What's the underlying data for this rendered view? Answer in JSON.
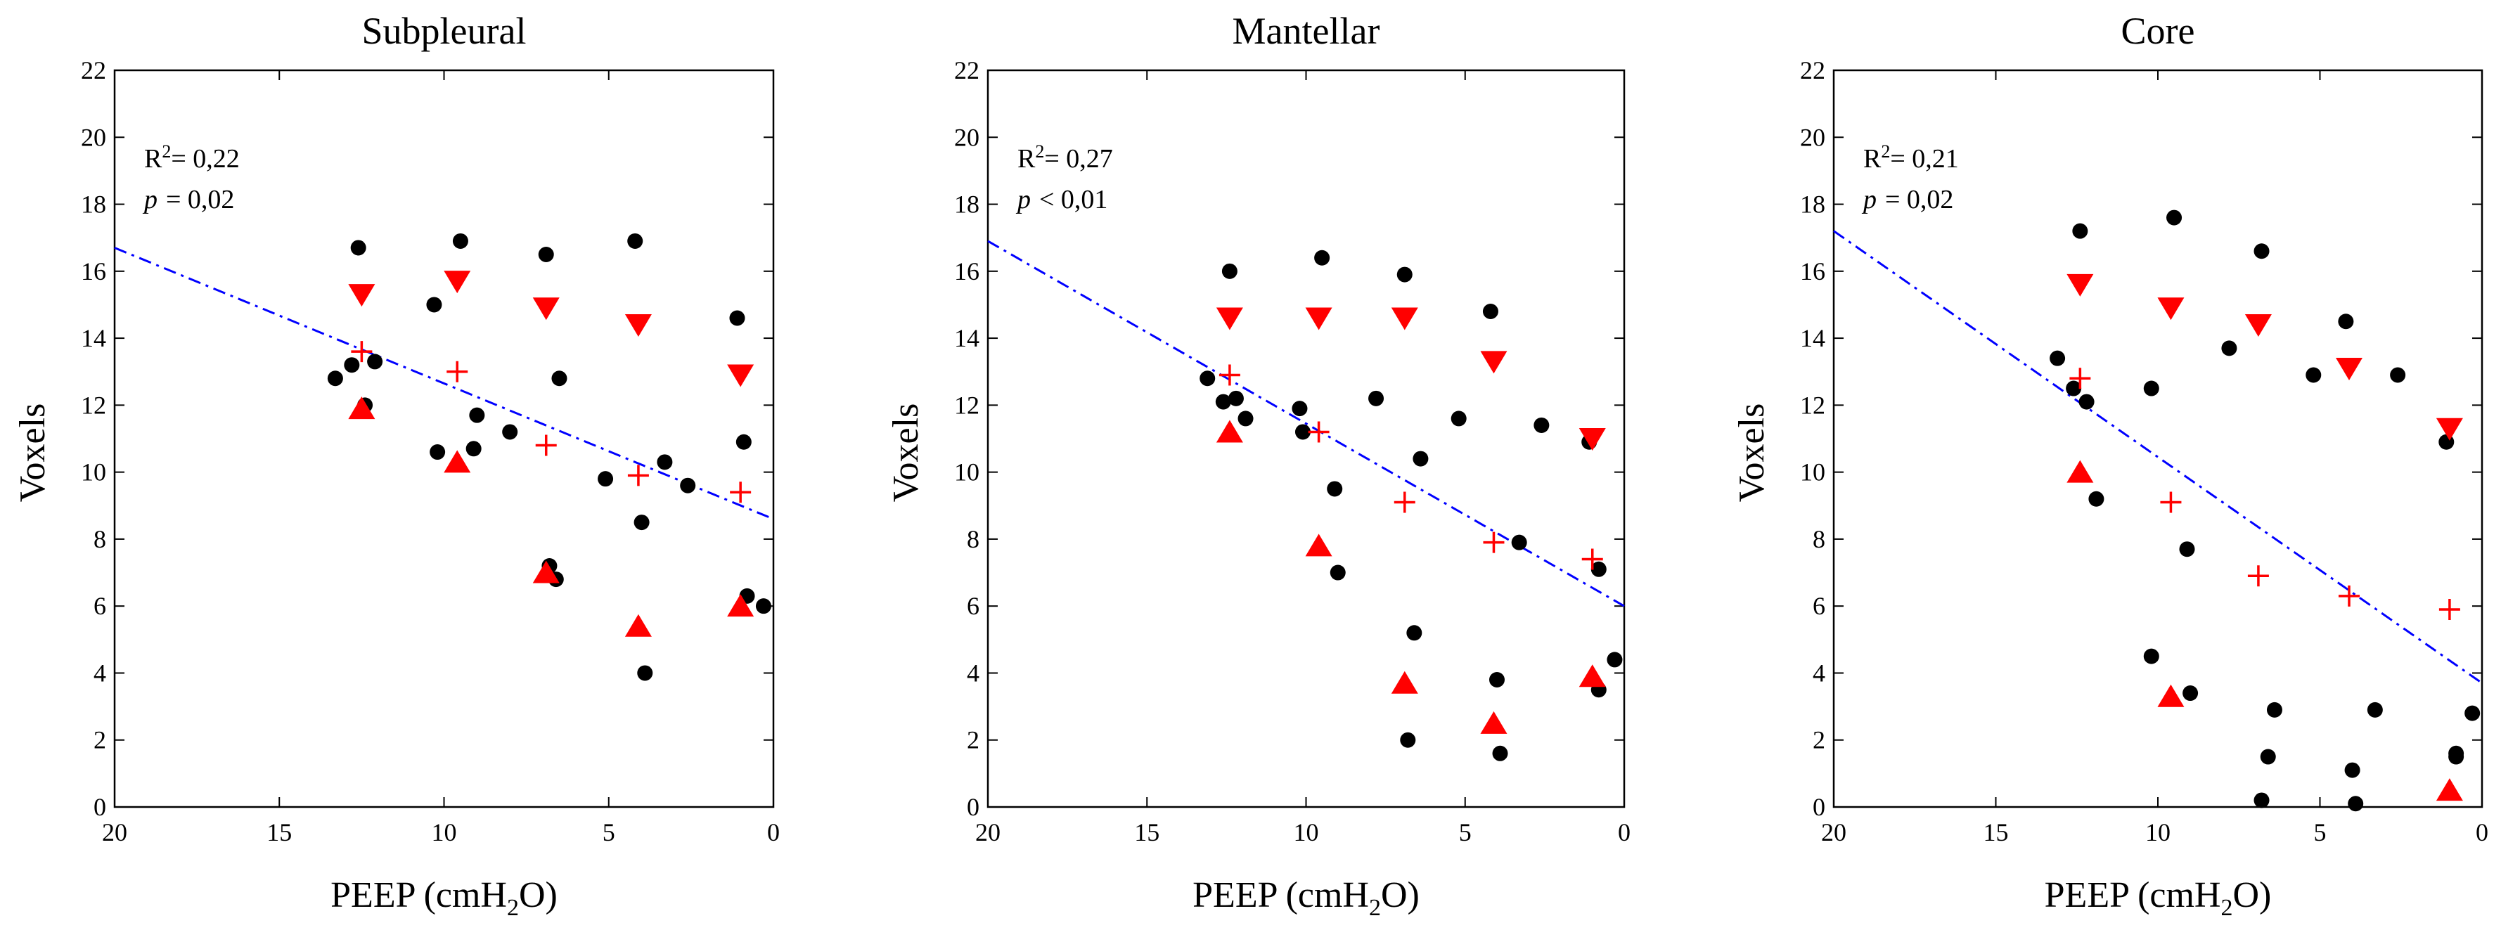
{
  "colors": {
    "dots": "#000000",
    "markers": "#ff0000",
    "regression": "#0000ff",
    "frame": "#000000"
  },
  "legend": {
    "up_triangle": "triangle-up-icon",
    "down_triangle": "triangle-down-icon",
    "mean": "plus-icon",
    "individual": "dot-icon"
  },
  "chart_data": [
    {
      "type": "scatter",
      "title": "Subpleural",
      "xlabel_text": "PEEP (cmH",
      "xlabel_sub": "2",
      "xlabel_end": "O)",
      "ylabel": "Voxels",
      "xlim": [
        20,
        0
      ],
      "ylim": [
        0,
        22
      ],
      "xticks": [
        20,
        15,
        10,
        5,
        0
      ],
      "yticks": [
        0,
        2,
        4,
        6,
        8,
        10,
        12,
        14,
        16,
        18,
        20,
        22
      ],
      "r2_label": "R",
      "r2_sup": "2",
      "r2_value": "= 0,22",
      "p_label": "p",
      "p_value": "= 0,02",
      "regression": {
        "x1": 20,
        "y1": 16.7,
        "x2": 0,
        "y2": 8.6
      },
      "points": [
        [
          13.3,
          12.8
        ],
        [
          12.8,
          13.2
        ],
        [
          12.6,
          16.7
        ],
        [
          12.4,
          12.0
        ],
        [
          12.1,
          13.3
        ],
        [
          10.3,
          15.0
        ],
        [
          10.2,
          10.6
        ],
        [
          9.5,
          16.9
        ],
        [
          9.1,
          10.7
        ],
        [
          9.0,
          11.7
        ],
        [
          8.0,
          11.2
        ],
        [
          6.9,
          16.5
        ],
        [
          6.8,
          7.2
        ],
        [
          6.6,
          6.8
        ],
        [
          6.5,
          12.8
        ],
        [
          5.1,
          9.8
        ],
        [
          4.2,
          16.9
        ],
        [
          4.0,
          8.5
        ],
        [
          3.9,
          4.0
        ],
        [
          3.3,
          10.3
        ],
        [
          2.6,
          9.6
        ],
        [
          1.1,
          14.6
        ],
        [
          0.9,
          10.9
        ],
        [
          0.8,
          6.3
        ],
        [
          0.3,
          6.0
        ]
      ],
      "down_triangles": [
        [
          12.5,
          15.3
        ],
        [
          9.6,
          15.7
        ],
        [
          6.9,
          14.9
        ],
        [
          4.1,
          14.4
        ],
        [
          1.0,
          12.9
        ]
      ],
      "up_triangles": [
        [
          12.5,
          11.9
        ],
        [
          9.6,
          10.3
        ],
        [
          6.9,
          7.0
        ],
        [
          4.1,
          5.4
        ],
        [
          1.0,
          6.0
        ]
      ],
      "means": [
        [
          12.5,
          13.6
        ],
        [
          9.6,
          13.0
        ],
        [
          6.9,
          10.8
        ],
        [
          4.1,
          9.9
        ],
        [
          1.0,
          9.4
        ]
      ]
    },
    {
      "type": "scatter",
      "title": "Mantellar",
      "xlabel_text": "PEEP (cmH",
      "xlabel_sub": "2",
      "xlabel_end": "O)",
      "ylabel": "Voxels",
      "xlim": [
        20,
        0
      ],
      "ylim": [
        0,
        22
      ],
      "xticks": [
        20,
        15,
        10,
        5,
        0
      ],
      "yticks": [
        0,
        2,
        4,
        6,
        8,
        10,
        12,
        14,
        16,
        18,
        20,
        22
      ],
      "r2_label": "R",
      "r2_sup": "2",
      "r2_value": "= 0,27",
      "p_label": "p",
      "p_value": "< 0,01",
      "regression": {
        "x1": 20,
        "y1": 16.9,
        "x2": 0,
        "y2": 6.0
      },
      "points": [
        [
          13.1,
          12.8
        ],
        [
          12.6,
          12.1
        ],
        [
          12.4,
          16.0
        ],
        [
          12.2,
          12.2
        ],
        [
          11.9,
          11.6
        ],
        [
          10.2,
          11.9
        ],
        [
          10.1,
          11.2
        ],
        [
          9.5,
          16.4
        ],
        [
          9.1,
          9.5
        ],
        [
          9.0,
          7.0
        ],
        [
          7.8,
          12.2
        ],
        [
          6.9,
          15.9
        ],
        [
          6.8,
          2.0
        ],
        [
          6.6,
          5.2
        ],
        [
          6.4,
          10.4
        ],
        [
          5.2,
          11.6
        ],
        [
          4.2,
          14.8
        ],
        [
          4.0,
          3.8
        ],
        [
          3.9,
          1.6
        ],
        [
          3.3,
          7.9
        ],
        [
          2.6,
          11.4
        ],
        [
          1.1,
          10.9
        ],
        [
          0.8,
          7.1
        ],
        [
          0.8,
          3.5
        ],
        [
          0.3,
          4.4
        ]
      ],
      "down_triangles": [
        [
          12.4,
          14.6
        ],
        [
          9.6,
          14.6
        ],
        [
          6.9,
          14.6
        ],
        [
          4.1,
          13.3
        ],
        [
          1.0,
          11.0
        ]
      ],
      "up_triangles": [
        [
          12.4,
          11.2
        ],
        [
          9.6,
          7.8
        ],
        [
          6.9,
          3.7
        ],
        [
          4.1,
          2.5
        ],
        [
          1.0,
          3.9
        ]
      ],
      "means": [
        [
          12.4,
          12.9
        ],
        [
          9.6,
          11.2
        ],
        [
          6.9,
          9.1
        ],
        [
          4.1,
          7.9
        ],
        [
          1.0,
          7.4
        ]
      ]
    },
    {
      "type": "scatter",
      "title": "Core",
      "xlabel_text": "PEEP (cmH",
      "xlabel_sub": "2",
      "xlabel_end": "O)",
      "ylabel": "Voxels",
      "xlim": [
        20,
        0
      ],
      "ylim": [
        0,
        22
      ],
      "xticks": [
        20,
        15,
        10,
        5,
        0
      ],
      "yticks": [
        0,
        2,
        4,
        6,
        8,
        10,
        12,
        14,
        16,
        18,
        20,
        22
      ],
      "r2_label": "R",
      "r2_sup": "2",
      "r2_value": "= 0,21",
      "p_label": "p",
      "p_value": "= 0,02",
      "regression": {
        "x1": 20,
        "y1": 17.2,
        "x2": 0,
        "y2": 3.7
      },
      "points": [
        [
          13.1,
          13.4
        ],
        [
          12.6,
          12.5
        ],
        [
          12.4,
          17.2
        ],
        [
          12.2,
          12.1
        ],
        [
          11.9,
          9.2
        ],
        [
          10.2,
          12.5
        ],
        [
          10.2,
          4.5
        ],
        [
          9.5,
          17.6
        ],
        [
          9.1,
          7.7
        ],
        [
          9.0,
          3.4
        ],
        [
          7.8,
          13.7
        ],
        [
          6.8,
          16.6
        ],
        [
          6.8,
          0.2
        ],
        [
          6.6,
          1.5
        ],
        [
          6.4,
          2.9
        ],
        [
          5.2,
          12.9
        ],
        [
          4.2,
          14.5
        ],
        [
          4.0,
          1.1
        ],
        [
          3.9,
          0.1
        ],
        [
          3.3,
          2.9
        ],
        [
          2.6,
          12.9
        ],
        [
          1.1,
          10.9
        ],
        [
          0.8,
          1.5
        ],
        [
          0.8,
          1.6
        ],
        [
          0.3,
          2.8
        ]
      ],
      "down_triangles": [
        [
          12.4,
          15.6
        ],
        [
          9.6,
          14.9
        ],
        [
          6.9,
          14.4
        ],
        [
          4.1,
          13.1
        ],
        [
          1.0,
          11.3
        ]
      ],
      "up_triangles": [
        [
          12.4,
          10.0
        ],
        [
          9.6,
          3.3
        ],
        [
          1.0,
          0.5
        ]
      ],
      "means": [
        [
          12.4,
          12.8
        ],
        [
          9.6,
          9.1
        ],
        [
          6.9,
          6.9
        ],
        [
          4.1,
          6.3
        ],
        [
          1.0,
          5.9
        ]
      ]
    }
  ]
}
